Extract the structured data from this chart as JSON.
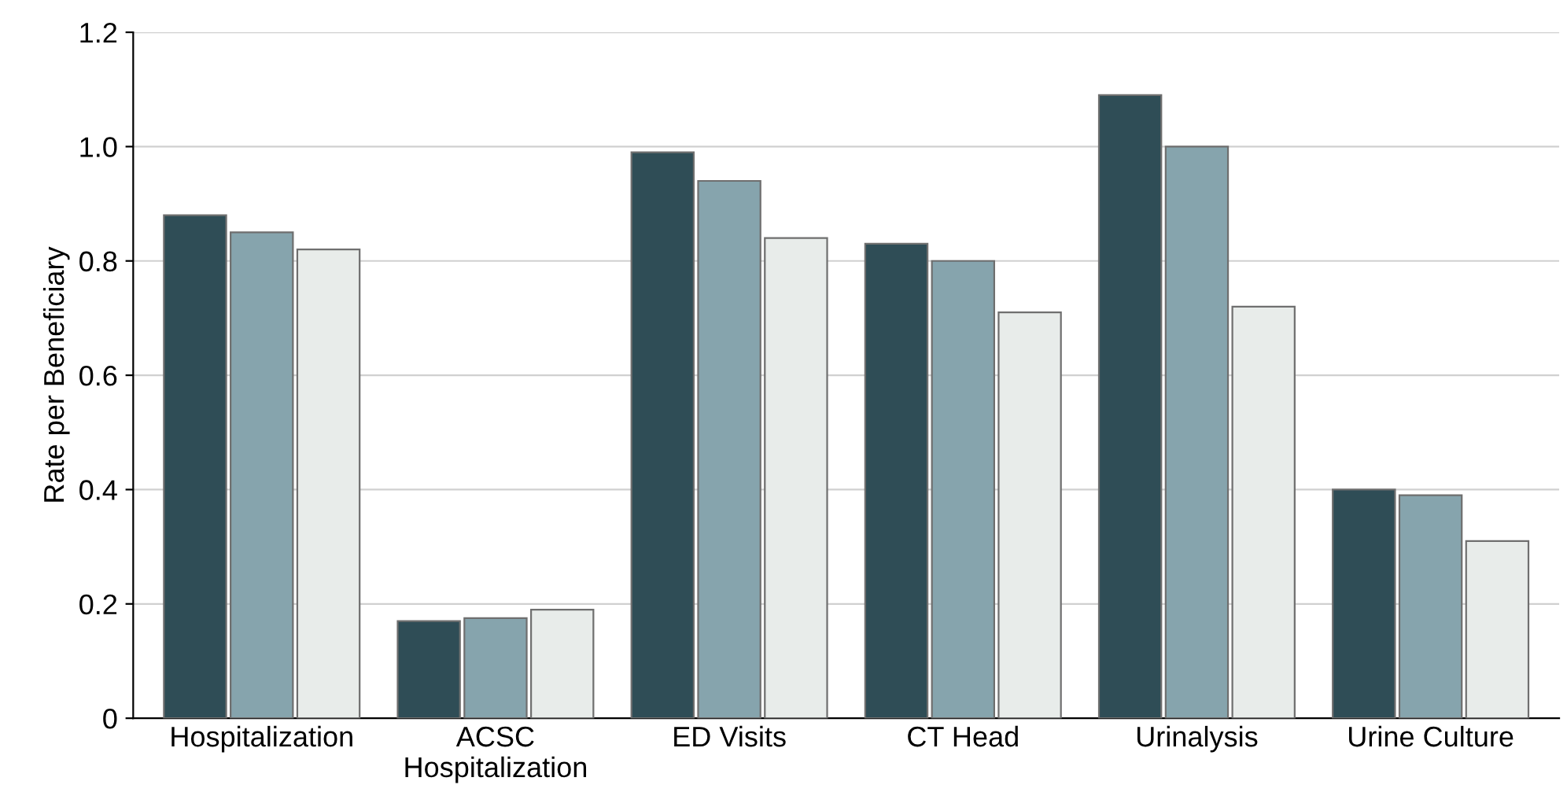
{
  "chart_data": {
    "type": "bar",
    "ylabel": "Rate per Beneficiary",
    "categories": [
      "Hospitalization",
      "ACSC\nHospitalization",
      "ED Visits",
      "CT Head",
      "Urinalysis",
      "Urine Culture"
    ],
    "series": [
      {
        "color": "#2f4d56",
        "values": [
          0.88,
          0.17,
          0.99,
          0.83,
          1.09,
          0.4
        ]
      },
      {
        "color": "#86a4ad",
        "values": [
          0.85,
          0.175,
          0.94,
          0.8,
          1.0,
          0.39
        ]
      },
      {
        "color": "#e8ecea",
        "values": [
          0.82,
          0.19,
          0.84,
          0.71,
          0.72,
          0.31
        ]
      }
    ],
    "ylim": [
      0,
      1.2
    ],
    "yticks": [
      0,
      {
        "value": 0.2,
        "label": "0.2"
      },
      {
        "value": 0.4,
        "label": "0.4"
      },
      {
        "value": 0.6,
        "label": "0.6"
      },
      {
        "value": 0.8,
        "label": "0.8"
      },
      {
        "value": 1.0,
        "label": "1.0"
      },
      {
        "value": 1.2,
        "label": "1.2"
      }
    ],
    "grid": "y"
  }
}
